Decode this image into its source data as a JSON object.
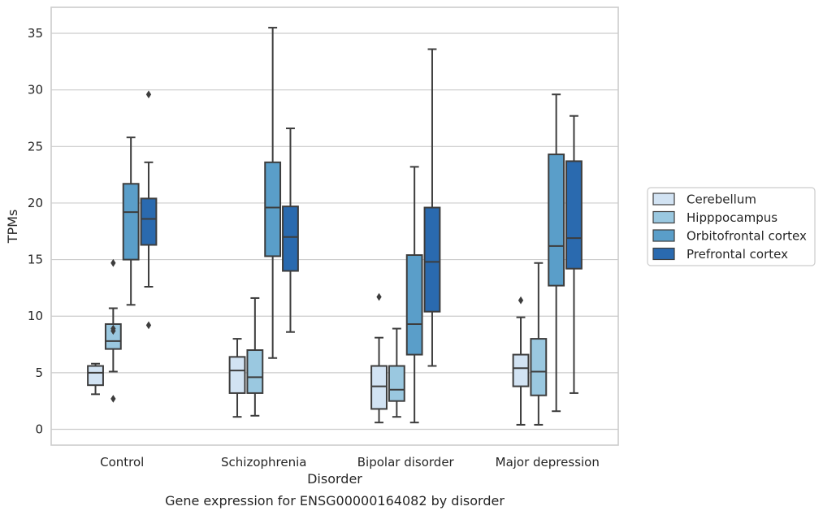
{
  "chart_data": {
    "type": "box",
    "xlabel": "Disorder",
    "ylabel": "TPMs",
    "caption": "Gene expression for ENSG00000164082 by disorder",
    "ylim": [
      -1.4,
      37.3
    ],
    "yticks": [
      0,
      5,
      10,
      15,
      20,
      25,
      30,
      35
    ],
    "grid": "horizontal",
    "legend_position": "right",
    "categories": [
      "Control",
      "Schizophrenia",
      "Bipolar disorder",
      "Major depression"
    ],
    "series": [
      {
        "name": "Cerebellum",
        "color": "#d2e3f3",
        "boxes": [
          {
            "whisker_low": 3.1,
            "q1": 3.9,
            "median": 5.0,
            "q3": 5.6,
            "whisker_high": 5.8,
            "outliers": []
          },
          {
            "whisker_low": 1.1,
            "q1": 3.2,
            "median": 5.2,
            "q3": 6.4,
            "whisker_high": 8.0,
            "outliers": []
          },
          {
            "whisker_low": 0.6,
            "q1": 1.8,
            "median": 3.8,
            "q3": 5.6,
            "whisker_high": 8.1,
            "outliers": [
              11.7
            ]
          },
          {
            "whisker_low": 0.4,
            "q1": 3.8,
            "median": 5.4,
            "q3": 6.6,
            "whisker_high": 9.9,
            "outliers": [
              11.4
            ]
          }
        ]
      },
      {
        "name": "Hipppocampus",
        "color": "#9ac8e0",
        "boxes": [
          {
            "whisker_low": 5.1,
            "q1": 7.1,
            "median": 7.8,
            "q3": 9.3,
            "whisker_high": 10.7,
            "outliers": [
              8.7,
              8.9,
              14.7,
              2.7
            ]
          },
          {
            "whisker_low": 1.2,
            "q1": 3.2,
            "median": 4.6,
            "q3": 7.0,
            "whisker_high": 11.6,
            "outliers": []
          },
          {
            "whisker_low": 1.1,
            "q1": 2.5,
            "median": 3.5,
            "q3": 5.6,
            "whisker_high": 8.9,
            "outliers": []
          },
          {
            "whisker_low": 0.4,
            "q1": 3.0,
            "median": 5.1,
            "q3": 8.0,
            "whisker_high": 14.7,
            "outliers": []
          }
        ]
      },
      {
        "name": "Orbitofrontal cortex",
        "color": "#5a9ec9",
        "boxes": [
          {
            "whisker_low": 11.0,
            "q1": 15.0,
            "median": 19.2,
            "q3": 21.7,
            "whisker_high": 25.8,
            "outliers": []
          },
          {
            "whisker_low": 6.3,
            "q1": 15.3,
            "median": 19.6,
            "q3": 23.6,
            "whisker_high": 35.5,
            "outliers": []
          },
          {
            "whisker_low": 0.6,
            "q1": 6.6,
            "median": 9.3,
            "q3": 15.4,
            "whisker_high": 23.2,
            "outliers": []
          },
          {
            "whisker_low": 1.6,
            "q1": 12.7,
            "median": 16.2,
            "q3": 24.3,
            "whisker_high": 29.6,
            "outliers": []
          }
        ]
      },
      {
        "name": "Prefrontal cortex",
        "color": "#2a6aaf",
        "boxes": [
          {
            "whisker_low": 12.6,
            "q1": 16.3,
            "median": 18.6,
            "q3": 20.4,
            "whisker_high": 23.6,
            "outliers": [
              29.6,
              9.2
            ]
          },
          {
            "whisker_low": 8.6,
            "q1": 14.0,
            "median": 17.0,
            "q3": 19.7,
            "whisker_high": 26.6,
            "outliers": []
          },
          {
            "whisker_low": 5.6,
            "q1": 10.4,
            "median": 14.8,
            "q3": 19.6,
            "whisker_high": 33.6,
            "outliers": []
          },
          {
            "whisker_low": 3.2,
            "q1": 14.2,
            "median": 16.9,
            "q3": 23.7,
            "whisker_high": 27.7,
            "outliers": []
          }
        ]
      }
    ]
  }
}
